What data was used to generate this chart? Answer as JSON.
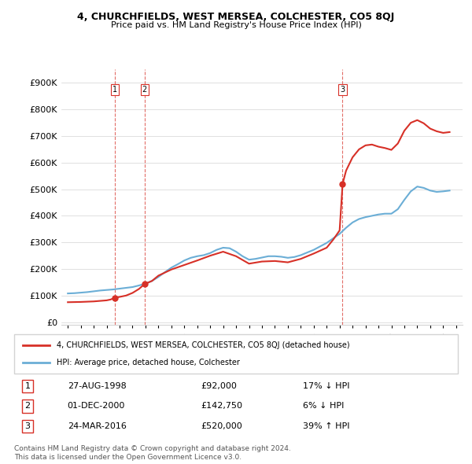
{
  "title_line1": "4, CHURCHFIELDS, WEST MERSEA, COLCHESTER, CO5 8QJ",
  "title_line2": "Price paid vs. HM Land Registry's House Price Index (HPI)",
  "ylabel": "",
  "yticks": [
    0,
    100000,
    200000,
    300000,
    400000,
    500000,
    600000,
    700000,
    800000,
    900000
  ],
  "ytick_labels": [
    "£0",
    "£100K",
    "£200K",
    "£300K",
    "£400K",
    "£500K",
    "£600K",
    "£700K",
    "£800K",
    "£900K"
  ],
  "ylim": [
    -10000,
    950000
  ],
  "xlim_start": 1994.5,
  "xlim_end": 2025.5,
  "hpi_color": "#6baed6",
  "price_color": "#d73027",
  "vline_color": "#d73027",
  "sale_dates": [
    1998.65,
    2000.92,
    2016.23
  ],
  "sale_prices": [
    92000,
    142750,
    520000
  ],
  "sale_labels": [
    "1",
    "2",
    "3"
  ],
  "legend_label1": "4, CHURCHFIELDS, WEST MERSEA, COLCHESTER, CO5 8QJ (detached house)",
  "legend_label2": "HPI: Average price, detached house, Colchester",
  "table_rows": [
    {
      "num": "1",
      "date": "27-AUG-1998",
      "price": "£92,000",
      "hpi": "17% ↓ HPI"
    },
    {
      "num": "2",
      "date": "01-DEC-2000",
      "price": "£142,750",
      "hpi": "6% ↓ HPI"
    },
    {
      "num": "3",
      "date": "24-MAR-2016",
      "price": "£520,000",
      "hpi": "39% ↑ HPI"
    }
  ],
  "footer": "Contains HM Land Registry data © Crown copyright and database right 2024.\nThis data is licensed under the Open Government Licence v3.0.",
  "hpi_years": [
    1995,
    1995.5,
    1996,
    1996.5,
    1997,
    1997.5,
    1998,
    1998.5,
    1999,
    1999.5,
    2000,
    2000.5,
    2001,
    2001.5,
    2002,
    2002.5,
    2003,
    2003.5,
    2004,
    2004.5,
    2005,
    2005.5,
    2006,
    2006.5,
    2007,
    2007.5,
    2008,
    2008.5,
    2009,
    2009.5,
    2010,
    2010.5,
    2011,
    2011.5,
    2012,
    2012.5,
    2013,
    2013.5,
    2014,
    2014.5,
    2015,
    2015.5,
    2016,
    2016.5,
    2017,
    2017.5,
    2018,
    2018.5,
    2019,
    2019.5,
    2020,
    2020.5,
    2021,
    2021.5,
    2022,
    2022.5,
    2023,
    2023.5,
    2024,
    2024.5
  ],
  "hpi_values": [
    108000,
    109000,
    111000,
    113000,
    116000,
    119000,
    121000,
    123000,
    126000,
    129000,
    132000,
    138000,
    145000,
    155000,
    170000,
    188000,
    205000,
    218000,
    232000,
    242000,
    248000,
    252000,
    260000,
    272000,
    280000,
    278000,
    265000,
    248000,
    235000,
    238000,
    243000,
    248000,
    248000,
    246000,
    242000,
    245000,
    252000,
    262000,
    272000,
    285000,
    298000,
    315000,
    332000,
    355000,
    375000,
    388000,
    395000,
    400000,
    405000,
    408000,
    408000,
    425000,
    460000,
    492000,
    510000,
    505000,
    495000,
    490000,
    492000,
    495000
  ],
  "price_years": [
    1995,
    1995.5,
    1996,
    1996.5,
    1997,
    1997.5,
    1998,
    1998.3,
    1998.65,
    1999,
    1999.5,
    2000,
    2000.5,
    2000.92,
    2001.5,
    2002,
    2003,
    2004,
    2005,
    2006,
    2007,
    2008,
    2009,
    2010,
    2011,
    2012,
    2013,
    2014,
    2015,
    2015.5,
    2016,
    2016.23,
    2016.5,
    2017,
    2017.5,
    2018,
    2018.5,
    2019,
    2019.5,
    2020,
    2020.5,
    2021,
    2021.5,
    2022,
    2022.5,
    2023,
    2023.5,
    2024,
    2024.5
  ],
  "price_values": [
    75000,
    75500,
    76000,
    77000,
    78000,
    80000,
    82000,
    85000,
    92000,
    95000,
    100000,
    110000,
    125000,
    142750,
    155000,
    175000,
    198000,
    215000,
    232000,
    250000,
    265000,
    248000,
    220000,
    228000,
    230000,
    225000,
    238000,
    258000,
    280000,
    310000,
    345000,
    520000,
    570000,
    620000,
    650000,
    665000,
    668000,
    660000,
    655000,
    648000,
    672000,
    720000,
    750000,
    760000,
    748000,
    728000,
    718000,
    712000,
    715000
  ]
}
